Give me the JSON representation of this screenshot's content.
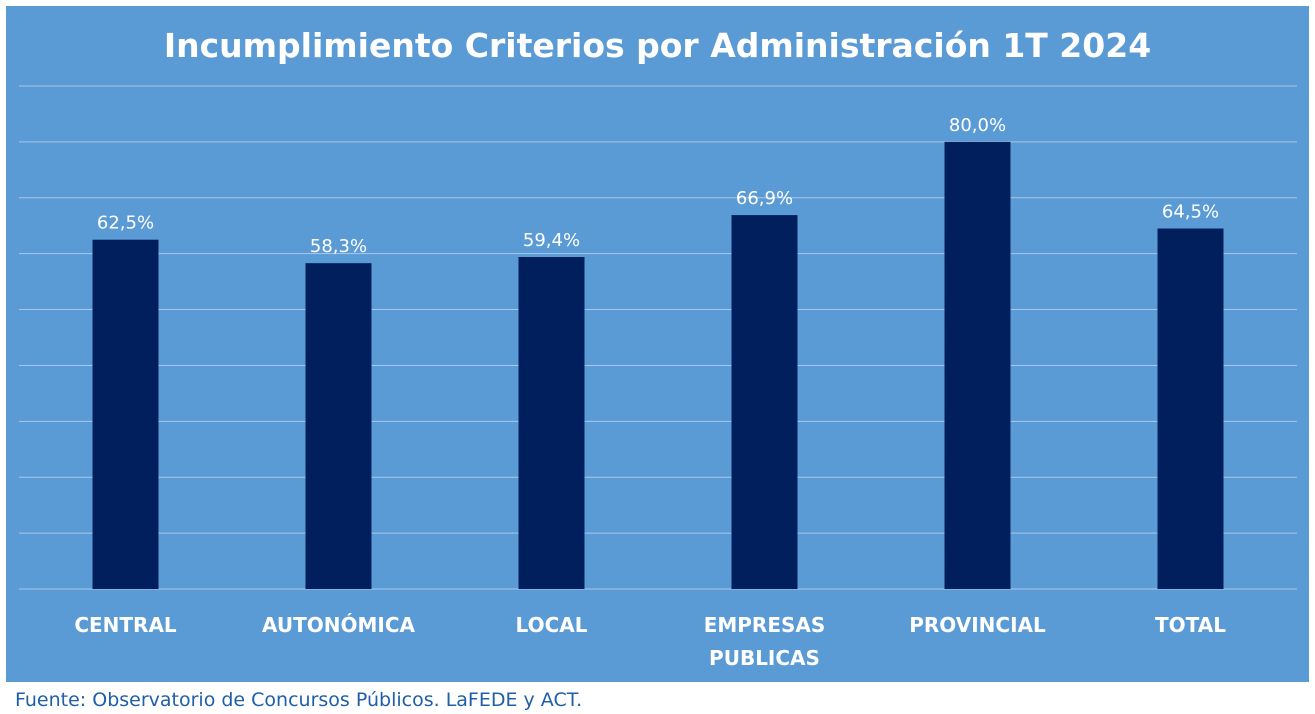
{
  "chart_data": {
    "type": "bar",
    "title": "Incumplimiento Criterios por Administración 1T 2024",
    "categories": [
      [
        "CENTRAL"
      ],
      [
        "AUTONÓMICA"
      ],
      [
        "LOCAL"
      ],
      [
        "EMPRESAS",
        "PUBLICAS"
      ],
      [
        "PROVINCIAL"
      ],
      [
        "TOTAL"
      ]
    ],
    "values": [
      62.5,
      58.3,
      59.4,
      66.9,
      80.0,
      64.5
    ],
    "data_labels": [
      "62,5%",
      "58,3%",
      "59,4%",
      "66,9%",
      "80,0%",
      "64,5%"
    ],
    "xlabel": "",
    "ylabel": "",
    "ylim": [
      0,
      90
    ],
    "grid": true,
    "y_tick_labels_shown": false,
    "legend": "none",
    "colors": {
      "background": "#5b9bd5",
      "bar": "#001f5c",
      "gridline": "#a9c7ea",
      "text": "#ffffff"
    }
  },
  "footer": {
    "source": "Fuente: Observatorio de Concursos Públicos. LaFEDE y ACT."
  }
}
